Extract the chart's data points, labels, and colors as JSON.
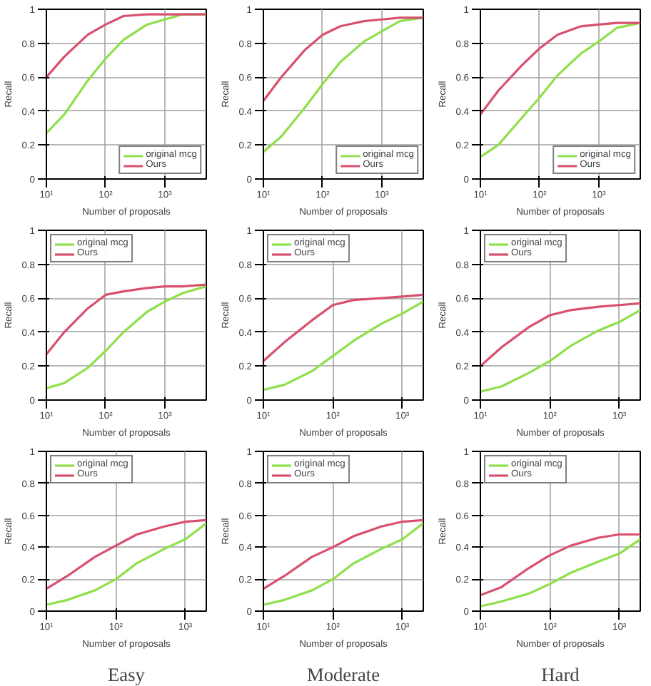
{
  "chart_data": [
    {
      "type": "line",
      "x": [
        10,
        20,
        50,
        100,
        200,
        500,
        1000,
        2000,
        5000
      ],
      "xlim": [
        10,
        5000
      ],
      "ylim": [
        0,
        1
      ],
      "log": "x",
      "grid": true,
      "legend": "bottom right",
      "xlabel": "Number of proposals",
      "ylabel": "Recall",
      "xticks": [
        {
          "value": 10,
          "label": "10¹"
        },
        {
          "value": 100,
          "label": "10²"
        },
        {
          "value": 1000,
          "label": "10³"
        }
      ],
      "yticks": [
        0,
        0.2,
        0.4,
        0.6,
        0.8,
        1
      ],
      "series": [
        {
          "name": "original mcg",
          "color": "#8ee04a",
          "values": [
            0.27,
            0.38,
            0.58,
            0.71,
            0.82,
            0.91,
            0.94,
            0.97,
            0.97
          ]
        },
        {
          "name": "Ours",
          "color": "#d9506e",
          "values": [
            0.6,
            0.72,
            0.85,
            0.91,
            0.96,
            0.97,
            0.97,
            0.97,
            0.97
          ]
        }
      ]
    },
    {
      "type": "line",
      "x": [
        10,
        20,
        50,
        100,
        200,
        500,
        1000,
        2000,
        5000
      ],
      "xlim": [
        10,
        5000
      ],
      "ylim": [
        0,
        1
      ],
      "log": "x",
      "grid": true,
      "legend": "bottom right",
      "xlabel": "Number of proposals",
      "ylabel": "Recall",
      "xticks": [
        {
          "value": 10,
          "label": "10¹"
        },
        {
          "value": 100,
          "label": "10²"
        },
        {
          "value": 1000,
          "label": "10³"
        }
      ],
      "yticks": [
        0,
        0.2,
        0.4,
        0.6,
        0.8,
        1
      ],
      "series": [
        {
          "name": "original mcg",
          "color": "#8ee04a",
          "values": [
            0.16,
            0.25,
            0.42,
            0.56,
            0.69,
            0.81,
            0.87,
            0.93,
            0.95
          ]
        },
        {
          "name": "Ours",
          "color": "#d9506e",
          "values": [
            0.46,
            0.6,
            0.76,
            0.85,
            0.9,
            0.93,
            0.94,
            0.95,
            0.95
          ]
        }
      ]
    },
    {
      "type": "line",
      "x": [
        10,
        20,
        50,
        100,
        200,
        500,
        1000,
        2000,
        5000
      ],
      "xlim": [
        10,
        5000
      ],
      "ylim": [
        0,
        1
      ],
      "log": "x",
      "grid": true,
      "legend": "bottom right",
      "xlabel": "Number of proposals",
      "ylabel": "Recall",
      "xticks": [
        {
          "value": 10,
          "label": "10¹"
        },
        {
          "value": 100,
          "label": "10²"
        },
        {
          "value": 1000,
          "label": "10³"
        }
      ],
      "yticks": [
        0,
        0.2,
        0.4,
        0.6,
        0.8,
        1
      ],
      "series": [
        {
          "name": "original mcg",
          "color": "#8ee04a",
          "values": [
            0.13,
            0.2,
            0.36,
            0.48,
            0.61,
            0.74,
            0.81,
            0.89,
            0.92
          ]
        },
        {
          "name": "Ours",
          "color": "#d9506e",
          "values": [
            0.38,
            0.52,
            0.67,
            0.77,
            0.85,
            0.9,
            0.91,
            0.92,
            0.92
          ]
        }
      ]
    },
    {
      "type": "line",
      "x": [
        10,
        20,
        50,
        100,
        200,
        500,
        1000,
        2000,
        5000
      ],
      "xlim": [
        10,
        5000
      ],
      "ylim": [
        0,
        1
      ],
      "log": "x",
      "grid": true,
      "legend": "top left",
      "xlabel": "Number of proposals",
      "ylabel": "Recall",
      "xticks": [
        {
          "value": 10,
          "label": "10¹"
        },
        {
          "value": 100,
          "label": "10²"
        },
        {
          "value": 1000,
          "label": "10³"
        }
      ],
      "yticks": [
        0,
        0.2,
        0.4,
        0.6,
        0.8,
        1
      ],
      "series": [
        {
          "name": "original mcg",
          "color": "#8ee04a",
          "values": [
            0.07,
            0.1,
            0.19,
            0.29,
            0.4,
            0.52,
            0.58,
            0.63,
            0.67
          ]
        },
        {
          "name": "Ours",
          "color": "#d9506e",
          "values": [
            0.27,
            0.4,
            0.54,
            0.62,
            0.64,
            0.66,
            0.67,
            0.67,
            0.68
          ]
        }
      ]
    },
    {
      "type": "line",
      "x": [
        10,
        20,
        50,
        100,
        200,
        500,
        1000,
        2000
      ],
      "xlim": [
        10,
        2000
      ],
      "ylim": [
        0,
        1
      ],
      "log": "x",
      "grid": true,
      "legend": "top left",
      "xlabel": "Number of proposals",
      "ylabel": "Recall",
      "xticks": [
        {
          "value": 10,
          "label": "10¹"
        },
        {
          "value": 100,
          "label": "10²"
        },
        {
          "value": 1000,
          "label": "10³"
        }
      ],
      "yticks": [
        0,
        0.2,
        0.4,
        0.6,
        0.8,
        1
      ],
      "series": [
        {
          "name": "original mcg",
          "color": "#8ee04a",
          "values": [
            0.06,
            0.09,
            0.17,
            0.26,
            0.35,
            0.45,
            0.51,
            0.58
          ]
        },
        {
          "name": "Ours",
          "color": "#d9506e",
          "values": [
            0.23,
            0.34,
            0.47,
            0.56,
            0.59,
            0.6,
            0.61,
            0.62
          ]
        }
      ]
    },
    {
      "type": "line",
      "x": [
        10,
        20,
        50,
        100,
        200,
        500,
        1000,
        2000
      ],
      "xlim": [
        10,
        2000
      ],
      "ylim": [
        0,
        1
      ],
      "log": "x",
      "grid": true,
      "legend": "top left",
      "xlabel": "Number of proposals",
      "ylabel": "Recall",
      "xticks": [
        {
          "value": 10,
          "label": "10¹"
        },
        {
          "value": 100,
          "label": "10²"
        },
        {
          "value": 1000,
          "label": "10³"
        }
      ],
      "yticks": [
        0,
        0.2,
        0.4,
        0.6,
        0.8,
        1
      ],
      "series": [
        {
          "name": "original mcg",
          "color": "#8ee04a",
          "values": [
            0.05,
            0.08,
            0.16,
            0.23,
            0.32,
            0.41,
            0.46,
            0.53
          ]
        },
        {
          "name": "Ours",
          "color": "#d9506e",
          "values": [
            0.2,
            0.31,
            0.43,
            0.5,
            0.53,
            0.55,
            0.56,
            0.57
          ]
        }
      ]
    },
    {
      "type": "line",
      "x": [
        10,
        20,
        50,
        100,
        200,
        500,
        1000,
        2000
      ],
      "xlim": [
        10,
        2000
      ],
      "ylim": [
        0,
        1
      ],
      "log": "x",
      "grid": true,
      "legend": "top left",
      "xlabel": "Number of proposals",
      "ylabel": "Recall",
      "annotations": [
        "Easy"
      ],
      "xticks": [
        {
          "value": 10,
          "label": "10¹"
        },
        {
          "value": 100,
          "label": "10²"
        },
        {
          "value": 1000,
          "label": "10³"
        }
      ],
      "yticks": [
        0,
        0.2,
        0.4,
        0.6,
        0.8,
        1
      ],
      "series": [
        {
          "name": "original mcg",
          "color": "#8ee04a",
          "values": [
            0.04,
            0.07,
            0.13,
            0.2,
            0.3,
            0.39,
            0.45,
            0.55
          ]
        },
        {
          "name": "Ours",
          "color": "#d9506e",
          "values": [
            0.14,
            0.22,
            0.34,
            0.41,
            0.48,
            0.53,
            0.56,
            0.57
          ]
        }
      ]
    },
    {
      "type": "line",
      "x": [
        10,
        20,
        50,
        100,
        200,
        500,
        1000,
        2000
      ],
      "xlim": [
        10,
        2000
      ],
      "ylim": [
        0,
        1
      ],
      "log": "x",
      "grid": true,
      "legend": "top left",
      "xlabel": "Number of proposals",
      "ylabel": "Recall",
      "annotations": [
        "Moderate"
      ],
      "xticks": [
        {
          "value": 10,
          "label": "10¹"
        },
        {
          "value": 100,
          "label": "10²"
        },
        {
          "value": 1000,
          "label": "10³"
        }
      ],
      "yticks": [
        0,
        0.2,
        0.4,
        0.6,
        0.8,
        1
      ],
      "series": [
        {
          "name": "original mcg",
          "color": "#8ee04a",
          "values": [
            0.04,
            0.07,
            0.13,
            0.2,
            0.3,
            0.39,
            0.45,
            0.55
          ]
        },
        {
          "name": "Ours",
          "color": "#d9506e",
          "values": [
            0.14,
            0.22,
            0.34,
            0.4,
            0.47,
            0.53,
            0.56,
            0.57
          ]
        }
      ]
    },
    {
      "type": "line",
      "x": [
        10,
        20,
        50,
        100,
        200,
        500,
        1000,
        2000
      ],
      "xlim": [
        10,
        2000
      ],
      "ylim": [
        0,
        1
      ],
      "log": "x",
      "grid": true,
      "legend": "top left",
      "xlabel": "Number of proposals",
      "ylabel": "Recall",
      "annotations": [
        "Hard"
      ],
      "xticks": [
        {
          "value": 10,
          "label": "10¹"
        },
        {
          "value": 100,
          "label": "10²"
        },
        {
          "value": 1000,
          "label": "10³"
        }
      ],
      "yticks": [
        0,
        0.2,
        0.4,
        0.6,
        0.8,
        1
      ],
      "series": [
        {
          "name": "original mcg",
          "color": "#8ee04a",
          "values": [
            0.03,
            0.06,
            0.11,
            0.17,
            0.24,
            0.31,
            0.36,
            0.45
          ]
        },
        {
          "name": "Ours",
          "color": "#d9506e",
          "values": [
            0.1,
            0.15,
            0.27,
            0.35,
            0.41,
            0.46,
            0.48,
            0.48
          ]
        }
      ]
    }
  ]
}
